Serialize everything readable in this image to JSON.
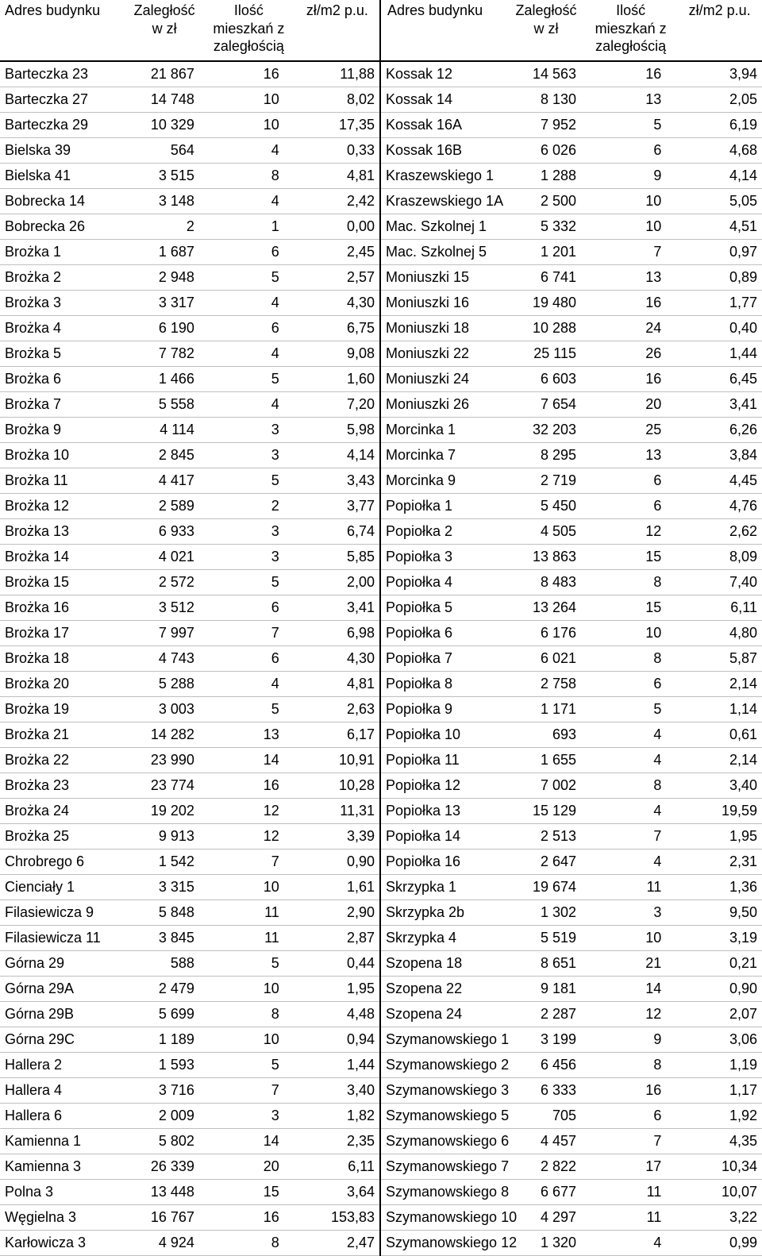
{
  "headers": {
    "address": "Adres budynku",
    "arrears": "Zaległość w zł",
    "apartments": "Ilość mieszkań z zaległością",
    "rate": "zł/m2 p.u."
  },
  "colors": {
    "background": "#ffffff",
    "text": "#000000",
    "row_border": "#bfbfbf",
    "header_border": "#000000",
    "center_divider": "#000000"
  },
  "typography": {
    "font_family": "Arial",
    "base_fontsize_pt": 14,
    "header_fontsize_pt": 14
  },
  "left": [
    {
      "address": "Barteczka 23",
      "arrears": "21 867",
      "apts": "16",
      "rate": "11,88"
    },
    {
      "address": "Barteczka 27",
      "arrears": "14 748",
      "apts": "10",
      "rate": "8,02"
    },
    {
      "address": "Barteczka 29",
      "arrears": "10 329",
      "apts": "10",
      "rate": "17,35"
    },
    {
      "address": "Bielska 39",
      "arrears": "564",
      "apts": "4",
      "rate": "0,33"
    },
    {
      "address": "Bielska 41",
      "arrears": "3 515",
      "apts": "8",
      "rate": "4,81"
    },
    {
      "address": "Bobrecka 14",
      "arrears": "3 148",
      "apts": "4",
      "rate": "2,42"
    },
    {
      "address": "Bobrecka 26",
      "arrears": "2",
      "apts": "1",
      "rate": "0,00"
    },
    {
      "address": "Brożka 1",
      "arrears": "1 687",
      "apts": "6",
      "rate": "2,45"
    },
    {
      "address": "Brożka 2",
      "arrears": "2 948",
      "apts": "5",
      "rate": "2,57"
    },
    {
      "address": "Brożka 3",
      "arrears": "3 317",
      "apts": "4",
      "rate": "4,30"
    },
    {
      "address": "Brożka 4",
      "arrears": "6 190",
      "apts": "6",
      "rate": "6,75"
    },
    {
      "address": "Brożka 5",
      "arrears": "7 782",
      "apts": "4",
      "rate": "9,08"
    },
    {
      "address": "Brożka 6",
      "arrears": "1 466",
      "apts": "5",
      "rate": "1,60"
    },
    {
      "address": "Brożka 7",
      "arrears": "5 558",
      "apts": "4",
      "rate": "7,20"
    },
    {
      "address": "Brożka 9",
      "arrears": "4 114",
      "apts": "3",
      "rate": "5,98"
    },
    {
      "address": "Brożka 10",
      "arrears": "2 845",
      "apts": "3",
      "rate": "4,14"
    },
    {
      "address": "Brożka 11",
      "arrears": "4 417",
      "apts": "5",
      "rate": "3,43"
    },
    {
      "address": "Brożka 12",
      "arrears": "2 589",
      "apts": "2",
      "rate": "3,77"
    },
    {
      "address": "Brożka 13",
      "arrears": "6 933",
      "apts": "3",
      "rate": "6,74"
    },
    {
      "address": "Brożka 14",
      "arrears": "4 021",
      "apts": "3",
      "rate": "5,85"
    },
    {
      "address": "Brożka 15",
      "arrears": "2 572",
      "apts": "5",
      "rate": "2,00"
    },
    {
      "address": "Brożka 16",
      "arrears": "3 512",
      "apts": "6",
      "rate": "3,41"
    },
    {
      "address": "Brożka 17",
      "arrears": "7 997",
      "apts": "7",
      "rate": "6,98"
    },
    {
      "address": "Brożka 18",
      "arrears": "4 743",
      "apts": "6",
      "rate": "4,30"
    },
    {
      "address": "Brożka 20",
      "arrears": "5 288",
      "apts": "4",
      "rate": "4,81"
    },
    {
      "address": "Brożka 19",
      "arrears": "3 003",
      "apts": "5",
      "rate": "2,63"
    },
    {
      "address": "Brożka 21",
      "arrears": "14 282",
      "apts": "13",
      "rate": "6,17"
    },
    {
      "address": "Brożka 22",
      "arrears": "23 990",
      "apts": "14",
      "rate": "10,91"
    },
    {
      "address": "Brożka 23",
      "arrears": "23 774",
      "apts": "16",
      "rate": "10,28"
    },
    {
      "address": "Brożka 24",
      "arrears": "19 202",
      "apts": "12",
      "rate": "11,31"
    },
    {
      "address": "Brożka 25",
      "arrears": "9 913",
      "apts": "12",
      "rate": "3,39"
    },
    {
      "address": "Chrobrego 6",
      "arrears": "1 542",
      "apts": "7",
      "rate": "0,90"
    },
    {
      "address": "Cienciały 1",
      "arrears": "3 315",
      "apts": "10",
      "rate": "1,61"
    },
    {
      "address": "Filasiewicza 9",
      "arrears": "5 848",
      "apts": "11",
      "rate": "2,90"
    },
    {
      "address": "Filasiewicza 11",
      "arrears": "3 845",
      "apts": "11",
      "rate": "2,87"
    },
    {
      "address": "Górna 29",
      "arrears": "588",
      "apts": "5",
      "rate": "0,44"
    },
    {
      "address": "Górna 29A",
      "arrears": "2 479",
      "apts": "10",
      "rate": "1,95"
    },
    {
      "address": "Górna 29B",
      "arrears": "5 699",
      "apts": "8",
      "rate": "4,48"
    },
    {
      "address": "Górna 29C",
      "arrears": "1 189",
      "apts": "10",
      "rate": "0,94"
    },
    {
      "address": "Hallera 2",
      "arrears": "1 593",
      "apts": "5",
      "rate": "1,44"
    },
    {
      "address": "Hallera 4",
      "arrears": "3 716",
      "apts": "7",
      "rate": "3,40"
    },
    {
      "address": "Hallera 6",
      "arrears": "2 009",
      "apts": "3",
      "rate": "1,82"
    },
    {
      "address": "Kamienna 1",
      "arrears": "5 802",
      "apts": "14",
      "rate": "2,35"
    },
    {
      "address": "Kamienna 3",
      "arrears": "26 339",
      "apts": "20",
      "rate": "6,11"
    },
    {
      "address": "Polna 3",
      "arrears": "13 448",
      "apts": "15",
      "rate": "3,64"
    },
    {
      "address": "Węgielna 3",
      "arrears": "16 767",
      "apts": "16",
      "rate": "153,83"
    },
    {
      "address": "Karłowicza 3",
      "arrears": "4 924",
      "apts": "8",
      "rate": "2,47"
    }
  ],
  "right": [
    {
      "address": "Kossak 12",
      "arrears": "14 563",
      "apts": "16",
      "rate": "3,94"
    },
    {
      "address": "Kossak 14",
      "arrears": "8 130",
      "apts": "13",
      "rate": "2,05"
    },
    {
      "address": "Kossak 16A",
      "arrears": "7 952",
      "apts": "5",
      "rate": "6,19"
    },
    {
      "address": "Kossak 16B",
      "arrears": "6 026",
      "apts": "6",
      "rate": "4,68"
    },
    {
      "address": "Kraszewskiego 1",
      "arrears": "1 288",
      "apts": "9",
      "rate": "4,14"
    },
    {
      "address": "Kraszewskiego 1A",
      "arrears": "2 500",
      "apts": "10",
      "rate": "5,05"
    },
    {
      "address": "Mac. Szkolnej 1",
      "arrears": "5 332",
      "apts": "10",
      "rate": "4,51"
    },
    {
      "address": "Mac. Szkolnej 5",
      "arrears": "1 201",
      "apts": "7",
      "rate": "0,97"
    },
    {
      "address": "Moniuszki 15",
      "arrears": "6 741",
      "apts": "13",
      "rate": "0,89"
    },
    {
      "address": "Moniuszki 16",
      "arrears": "19 480",
      "apts": "16",
      "rate": "1,77"
    },
    {
      "address": "Moniuszki 18",
      "arrears": "10 288",
      "apts": "24",
      "rate": "0,40"
    },
    {
      "address": "Moniuszki 22",
      "arrears": "25 115",
      "apts": "26",
      "rate": "1,44"
    },
    {
      "address": "Moniuszki 24",
      "arrears": "6 603",
      "apts": "16",
      "rate": "6,45"
    },
    {
      "address": "Moniuszki 26",
      "arrears": "7 654",
      "apts": "20",
      "rate": "3,41"
    },
    {
      "address": "Morcinka 1",
      "arrears": "32 203",
      "apts": "25",
      "rate": "6,26"
    },
    {
      "address": "Morcinka 7",
      "arrears": "8 295",
      "apts": "13",
      "rate": "3,84"
    },
    {
      "address": "Morcinka 9",
      "arrears": "2 719",
      "apts": "6",
      "rate": "4,45"
    },
    {
      "address": "Popiołka 1",
      "arrears": "5 450",
      "apts": "6",
      "rate": "4,76"
    },
    {
      "address": "Popiołka 2",
      "arrears": "4 505",
      "apts": "12",
      "rate": "2,62"
    },
    {
      "address": "Popiołka 3",
      "arrears": "13 863",
      "apts": "15",
      "rate": "8,09"
    },
    {
      "address": "Popiołka 4",
      "arrears": "8 483",
      "apts": "8",
      "rate": "7,40"
    },
    {
      "address": "Popiołka 5",
      "arrears": "13 264",
      "apts": "15",
      "rate": "6,11"
    },
    {
      "address": "Popiołka 6",
      "arrears": "6 176",
      "apts": "10",
      "rate": "4,80"
    },
    {
      "address": "Popiołka 7",
      "arrears": "6 021",
      "apts": "8",
      "rate": "5,87"
    },
    {
      "address": "Popiołka 8",
      "arrears": "2 758",
      "apts": "6",
      "rate": "2,14"
    },
    {
      "address": "Popiołka 9",
      "arrears": "1 171",
      "apts": "5",
      "rate": "1,14"
    },
    {
      "address": "Popiołka 10",
      "arrears": "693",
      "apts": "4",
      "rate": "0,61"
    },
    {
      "address": "Popiołka 11",
      "arrears": "1 655",
      "apts": "4",
      "rate": "2,14"
    },
    {
      "address": "Popiołka 12",
      "arrears": "7 002",
      "apts": "8",
      "rate": "3,40"
    },
    {
      "address": "Popiołka 13",
      "arrears": "15 129",
      "apts": "4",
      "rate": "19,59"
    },
    {
      "address": "Popiołka 14",
      "arrears": "2 513",
      "apts": "7",
      "rate": "1,95"
    },
    {
      "address": "Popiołka 16",
      "arrears": "2 647",
      "apts": "4",
      "rate": "2,31"
    },
    {
      "address": "Skrzypka 1",
      "arrears": "19 674",
      "apts": "11",
      "rate": "1,36"
    },
    {
      "address": "Skrzypka 2b",
      "arrears": "1 302",
      "apts": "3",
      "rate": "9,50"
    },
    {
      "address": "Skrzypka 4",
      "arrears": "5 519",
      "apts": "10",
      "rate": "3,19"
    },
    {
      "address": "Szopena 18",
      "arrears": "8 651",
      "apts": "21",
      "rate": "0,21"
    },
    {
      "address": "Szopena 22",
      "arrears": "9 181",
      "apts": "14",
      "rate": "0,90"
    },
    {
      "address": "Szopena 24",
      "arrears": "2 287",
      "apts": "12",
      "rate": "2,07"
    },
    {
      "address": "Szymanowskiego 1",
      "arrears": "3 199",
      "apts": "9",
      "rate": "3,06"
    },
    {
      "address": "Szymanowskiego 2",
      "arrears": "6 456",
      "apts": "8",
      "rate": "1,19"
    },
    {
      "address": "Szymanowskiego 3",
      "arrears": "6 333",
      "apts": "16",
      "rate": "1,17"
    },
    {
      "address": "Szymanowskiego 5",
      "arrears": "705",
      "apts": "6",
      "rate": "1,92"
    },
    {
      "address": "Szymanowskiego 6",
      "arrears": "4 457",
      "apts": "7",
      "rate": "4,35"
    },
    {
      "address": "Szymanowskiego 7",
      "arrears": "2 822",
      "apts": "17",
      "rate": "10,34"
    },
    {
      "address": "Szymanowskiego 8",
      "arrears": "6 677",
      "apts": "11",
      "rate": "10,07"
    },
    {
      "address": "Szymanowskiego 10",
      "arrears": "4 297",
      "apts": "11",
      "rate": "3,22"
    },
    {
      "address": "Szymanowskiego 12",
      "arrears": "1 320",
      "apts": "4",
      "rate": "0,99"
    }
  ]
}
